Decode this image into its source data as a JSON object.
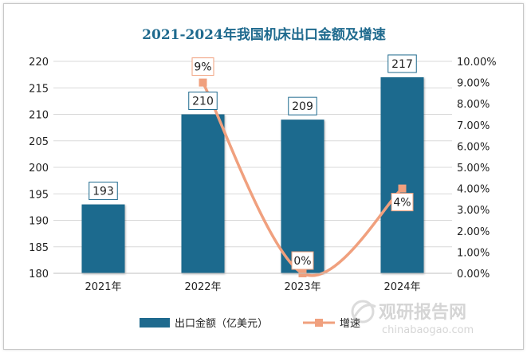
{
  "chart_data": {
    "type": "bar",
    "title": "2021-2024年我国机床出口金额及增速",
    "categories": [
      "2021年",
      "2022年",
      "2023年",
      "2024年"
    ],
    "series": [
      {
        "name": "出口金额（亿美元）",
        "kind": "bar",
        "axis": "left",
        "values": [
          193,
          210,
          209,
          217
        ],
        "data_labels": [
          "193",
          "210",
          "209",
          "217"
        ]
      },
      {
        "name": "增速",
        "kind": "line",
        "axis": "right",
        "values": [
          null,
          9,
          0,
          4
        ],
        "data_labels": [
          null,
          "9%",
          "0%",
          "4%"
        ]
      }
    ],
    "y_left": {
      "ylim": [
        180,
        220
      ],
      "ticks": [
        180,
        185,
        190,
        195,
        200,
        205,
        210,
        215,
        220
      ],
      "tick_labels": [
        "180",
        "185",
        "190",
        "195",
        "200",
        "205",
        "210",
        "215",
        "220"
      ]
    },
    "y_right": {
      "ylim": [
        0,
        10
      ],
      "ticks": [
        0,
        1,
        2,
        3,
        4,
        5,
        6,
        7,
        8,
        9,
        10
      ],
      "tick_labels": [
        "0.00%",
        "1.00%",
        "2.00%",
        "3.00%",
        "4.00%",
        "5.00%",
        "6.00%",
        "7.00%",
        "8.00%",
        "9.00%",
        "10.00%"
      ]
    },
    "grid": true,
    "legend_position": "bottom",
    "colors": {
      "bar": "#1f6a8e",
      "line": "#f0a07e",
      "title": "#1f6a8e"
    }
  },
  "watermark": {
    "brand": "观研报告网",
    "url": "chinabaogao.com"
  }
}
